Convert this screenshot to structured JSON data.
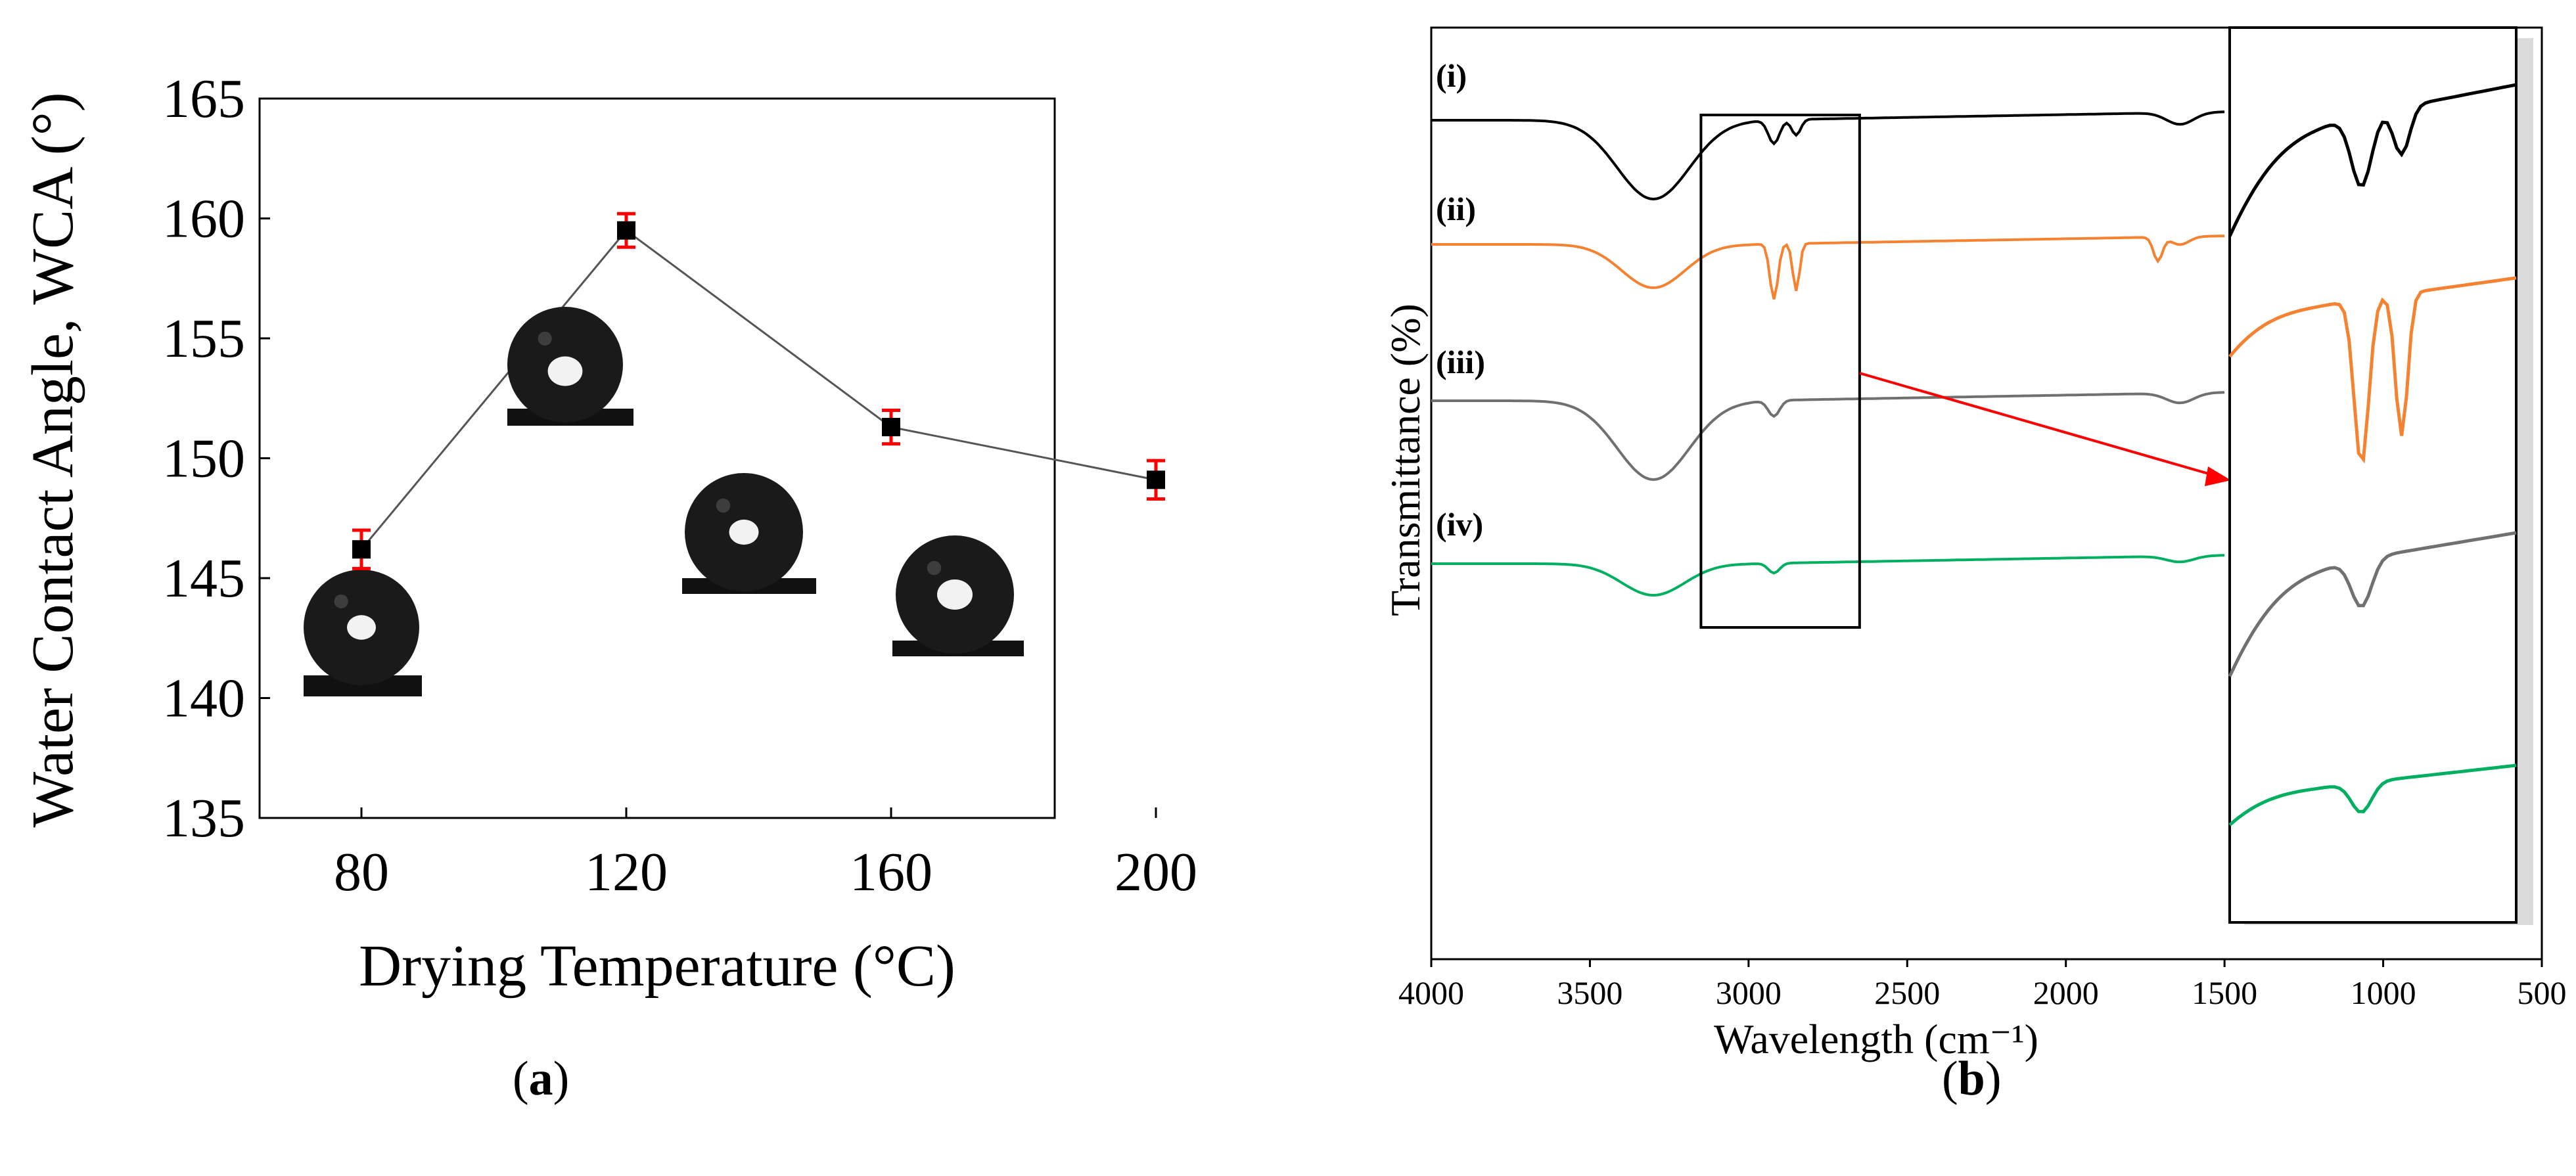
{
  "captions": {
    "a_open": "(",
    "a_label": "a",
    "a_close": ")",
    "b_open": "(",
    "b_label": "b",
    "b_close": ")"
  },
  "chart_data": [
    {
      "panel": "a",
      "type": "line",
      "xlabel": "Drying Temperature (°C)",
      "ylabel": "Water Contact Angle, WCA (°)",
      "categories": [
        "80",
        "120",
        "160",
        "200"
      ],
      "x": [
        80,
        120,
        160,
        200
      ],
      "values": [
        146.2,
        159.5,
        151.3,
        149.1
      ],
      "errors": [
        0.8,
        0.7,
        0.7,
        0.8
      ],
      "ylim": [
        135,
        165
      ],
      "yticks": [
        "135",
        "140",
        "145",
        "150",
        "155",
        "160",
        "165"
      ],
      "marker_color": "#000000",
      "line_color": "#555555",
      "errorbar_color": "#ff0000",
      "droplet_images": 4
    },
    {
      "panel": "b",
      "type": "line",
      "xlabel": "Wavelength (cm⁻¹)",
      "ylabel": "Transmittance (%)",
      "xlim": [
        4000,
        500
      ],
      "xticks": [
        "4000",
        "3500",
        "3000",
        "2500",
        "2000",
        "1500",
        "1000",
        "500"
      ],
      "inset_box_x_range": [
        3150,
        2650
      ],
      "series": [
        {
          "name": "(i)",
          "color": "#000000",
          "baseline": 0,
          "dips": [
            [
              3300,
              40,
              160
            ],
            [
              2920,
              12,
              25
            ],
            [
              2850,
              8,
              20
            ],
            [
              1640,
              6,
              60
            ]
          ],
          "end_rise": 12
        },
        {
          "name": "(ii)",
          "color": "#f58231",
          "baseline": 0,
          "dips": [
            [
              3300,
              22,
              140
            ],
            [
              2920,
              28,
              18
            ],
            [
              2850,
              24,
              15
            ],
            [
              1710,
              12,
              20
            ],
            [
              1640,
              4,
              40
            ]
          ],
          "end_rise": 8
        },
        {
          "name": "(iii)",
          "color": "#707070",
          "baseline": 0,
          "dips": [
            [
              3300,
              40,
              160
            ],
            [
              2920,
              8,
              25
            ],
            [
              1640,
              5,
              60
            ]
          ],
          "end_rise": 10
        },
        {
          "name": "(iv)",
          "color": "#00b060",
          "baseline": 0,
          "dips": [
            [
              3300,
              16,
              140
            ],
            [
              2920,
              5,
              25
            ],
            [
              1640,
              3,
              60
            ]
          ],
          "end_rise": 6
        }
      ]
    }
  ]
}
